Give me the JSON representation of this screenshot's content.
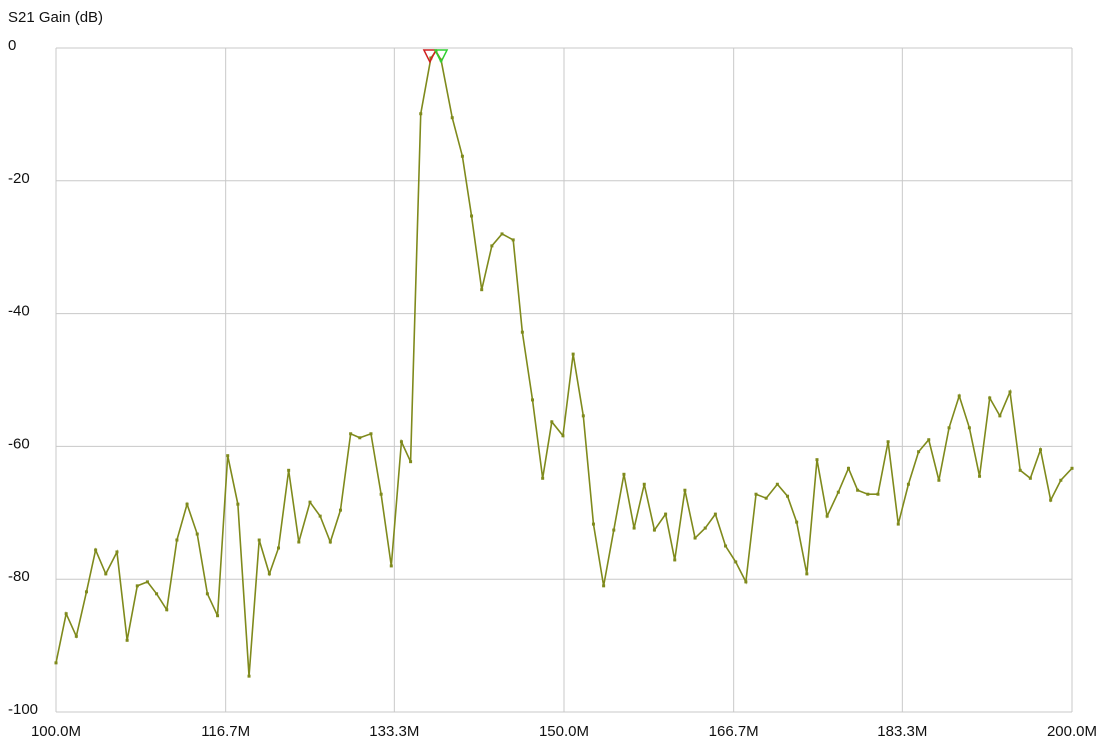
{
  "chart_data": {
    "type": "line",
    "title": "S21 Gain (dB)",
    "grid": true,
    "xlim": [
      100,
      200
    ],
    "ylim": [
      -100,
      0
    ],
    "xticks": [
      {
        "value": 100,
        "label": "100.0M"
      },
      {
        "value": 116.7,
        "label": "116.7M"
      },
      {
        "value": 133.3,
        "label": "133.3M"
      },
      {
        "value": 150,
        "label": "150.0M"
      },
      {
        "value": 166.7,
        "label": "166.7M"
      },
      {
        "value": 183.3,
        "label": "183.3M"
      },
      {
        "value": 200,
        "label": "200.0M"
      }
    ],
    "yticks": [
      0,
      -20,
      -40,
      -60,
      -80,
      -100
    ],
    "markers": [
      {
        "x": 136.8,
        "color": "#d02020"
      },
      {
        "x": 137.9,
        "color": "#30d030"
      }
    ],
    "x": [
      100,
      101,
      102,
      103,
      103.9,
      104.9,
      106,
      107,
      108,
      109,
      109.9,
      110.9,
      111.9,
      112.9,
      113.9,
      114.9,
      115.9,
      116.9,
      117.9,
      119,
      120,
      121,
      121.9,
      122.9,
      123.9,
      125,
      126,
      127,
      128,
      129,
      129.9,
      131,
      132,
      133,
      134,
      134.9,
      135.9,
      136.9,
      137.4,
      137.9,
      139,
      140,
      140.9,
      141.9,
      142.9,
      143.9,
      145,
      145.9,
      146.9,
      147.9,
      148.8,
      149.9,
      150.9,
      151.9,
      152.9,
      153.9,
      154.9,
      155.9,
      156.9,
      157.9,
      158.9,
      160,
      160.9,
      161.9,
      162.9,
      163.9,
      164.9,
      165.9,
      166.9,
      167.9,
      168.9,
      169.9,
      171,
      172,
      172.9,
      173.9,
      174.9,
      175.9,
      177,
      178,
      178.9,
      179.9,
      180.9,
      181.9,
      182.9,
      183.9,
      184.9,
      185.9,
      186.9,
      187.9,
      188.9,
      189.9,
      190.9,
      191.9,
      192.9,
      193.9,
      194.9,
      195.9,
      196.9,
      197.9,
      198.9,
      200
    ],
    "series": [
      {
        "color": "#7f8a1c",
        "values": [
          -92.6,
          -85.2,
          -88.6,
          -81.9,
          -75.6,
          -79.2,
          -75.9,
          -89.2,
          -81,
          -80.4,
          -82.2,
          -84.6,
          -74.1,
          -68.7,
          -73.2,
          -82.2,
          -85.5,
          -61.4,
          -68.7,
          -94.6,
          -74.1,
          -79.2,
          -75.3,
          -63.6,
          -74.4,
          -68.4,
          -70.5,
          -74.4,
          -69.6,
          -58.1,
          -58.7,
          -58.1,
          -67.2,
          -78,
          -59.3,
          -62.3,
          -9.9,
          -1.5,
          -0.5,
          -1.8,
          -10.5,
          -16.3,
          -25.3,
          -36.4,
          -29.8,
          -28,
          -28.9,
          -42.8,
          -53,
          -64.8,
          -56.3,
          -58.4,
          -46.1,
          -55.4,
          -71.7,
          -81,
          -72.6,
          -64.2,
          -72.3,
          -65.7,
          -72.6,
          -70.2,
          -77.1,
          -66.6,
          -73.8,
          -72.3,
          -70.2,
          -75,
          -77.4,
          -80.4,
          -67.2,
          -67.8,
          -65.7,
          -67.5,
          -71.4,
          -79.2,
          -62,
          -70.5,
          -66.9,
          -63.3,
          -66.6,
          -67.2,
          -67.2,
          -59.3,
          -71.7,
          -65.7,
          -60.8,
          -59,
          -65.1,
          -57.2,
          -52.4,
          -57.2,
          -64.5,
          -52.7,
          -55.4,
          -51.8,
          -63.6,
          -64.8,
          -60.5,
          -68.1,
          -65.1,
          -63.3
        ]
      }
    ]
  }
}
